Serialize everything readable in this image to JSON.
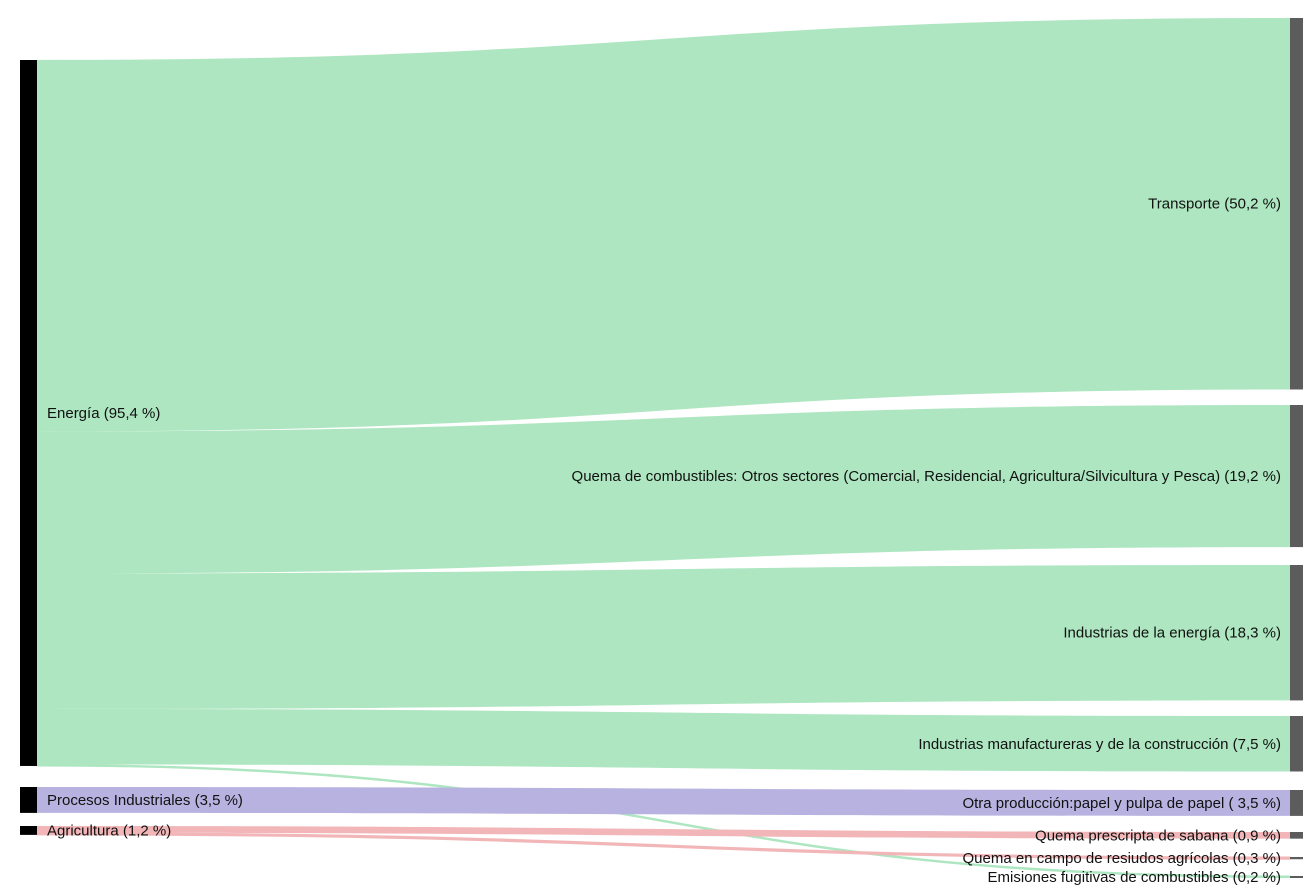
{
  "chart_data": {
    "type": "sankey",
    "sources": [
      {
        "id": "energia",
        "label": "Energía (95,4 %)",
        "value": 95.4
      },
      {
        "id": "procesos",
        "label": "Procesos Industriales (3,5 %)",
        "value": 3.5
      },
      {
        "id": "agricultura",
        "label": "Agricultura (1,2 %)",
        "value": 1.2
      }
    ],
    "targets": [
      {
        "id": "transporte",
        "label": "Transporte (50,2 %)",
        "value": 50.2
      },
      {
        "id": "otros_sectores",
        "label": "Quema de combustibles: Otros sectores (Comercial, Residencial, Agricultura/Silvicultura y Pesca) (19,2 %)",
        "value": 19.2
      },
      {
        "id": "industrias_energia",
        "label": "Industrias de la energía (18,3 %)",
        "value": 18.3
      },
      {
        "id": "manufactureras",
        "label": "Industrias manufactureras y de la construcción (7,5 %)",
        "value": 7.5
      },
      {
        "id": "papel",
        "label": "Otra producción:papel y pulpa de papel ( 3,5 %)",
        "value": 3.5
      },
      {
        "id": "sabana",
        "label": "Quema prescripta de sabana (0,9 %)",
        "value": 0.9
      },
      {
        "id": "residuos",
        "label": "Quema en campo de resiudos agrícolas (0,3 %)",
        "value": 0.3
      },
      {
        "id": "fugitivas",
        "label": "Emisiones fugitivas de combustibles (0,2 %)",
        "value": 0.2
      }
    ],
    "links": [
      {
        "source": "energia",
        "target": "transporte",
        "value": 50.2
      },
      {
        "source": "energia",
        "target": "otros_sectores",
        "value": 19.2
      },
      {
        "source": "energia",
        "target": "industrias_energia",
        "value": 18.3
      },
      {
        "source": "energia",
        "target": "manufactureras",
        "value": 7.5
      },
      {
        "source": "energia",
        "target": "fugitivas",
        "value": 0.2
      },
      {
        "source": "procesos",
        "target": "papel",
        "value": 3.5
      },
      {
        "source": "agricultura",
        "target": "sabana",
        "value": 0.9
      },
      {
        "source": "agricultura",
        "target": "residuos",
        "value": 0.3
      }
    ],
    "colors": {
      "energia": "#ade6c0",
      "procesos": "#b8b2e0",
      "agricultura": "#f2b6b8",
      "source_bar": "#000000",
      "target_bar": "#5c5c5c"
    }
  }
}
